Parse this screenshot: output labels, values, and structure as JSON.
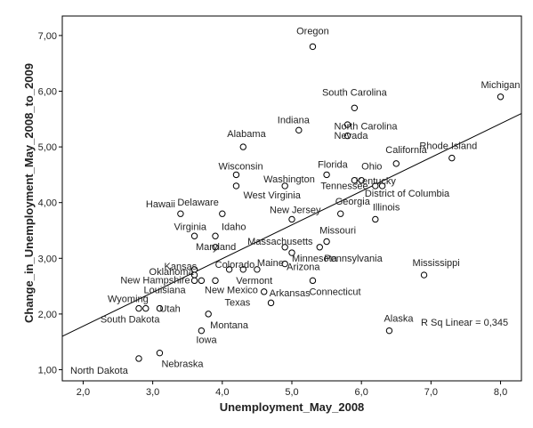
{
  "chart_data": {
    "type": "scatter",
    "xlabel": "Unemployment_May_2008",
    "ylabel": "Change_in_Unemployment_May_2008_to_2009",
    "xlim": [
      1.7,
      8.3
    ],
    "ylim": [
      0.8,
      7.35
    ],
    "x_ticks": [
      "2,0",
      "3,0",
      "4,0",
      "5,0",
      "6,0",
      "7,0",
      "8,0"
    ],
    "y_ticks": [
      "1,00",
      "2,00",
      "3,00",
      "4,00",
      "5,00",
      "6,00",
      "7,00"
    ],
    "grid": false,
    "fit_line": {
      "type": "linear",
      "x": [
        1.7,
        8.3
      ],
      "y": [
        1.6,
        5.6
      ]
    },
    "annotation": "R Sq Linear = 0,345",
    "points": [
      {
        "label": "Oregon",
        "x": 5.3,
        "y": 6.8
      },
      {
        "label": "Michigan",
        "x": 8.0,
        "y": 5.9
      },
      {
        "label": "South Carolina",
        "x": 5.9,
        "y": 5.7
      },
      {
        "label": "Indiana",
        "x": 5.1,
        "y": 5.3
      },
      {
        "label": "North Carolina",
        "x": 5.8,
        "y": 5.2
      },
      {
        "label": "Alabama",
        "x": 4.3,
        "y": 5.0
      },
      {
        "label": "Nevada",
        "x": 5.8,
        "y": 5.4
      },
      {
        "label": "California",
        "x": 6.5,
        "y": 4.7
      },
      {
        "label": "Rhode Island",
        "x": 7.3,
        "y": 4.8
      },
      {
        "label": "Wisconsin",
        "x": 4.2,
        "y": 4.5
      },
      {
        "label": "Florida",
        "x": 5.5,
        "y": 4.5
      },
      {
        "label": "Ohio",
        "x": 6.0,
        "y": 4.4
      },
      {
        "label": "Washington",
        "x": 4.9,
        "y": 4.3
      },
      {
        "label": "Kentucky",
        "x": 6.3,
        "y": 4.3
      },
      {
        "label": "Tennessee",
        "x": 5.9,
        "y": 4.4
      },
      {
        "label": "West Virginia",
        "x": 4.2,
        "y": 4.3
      },
      {
        "label": "District of Columbia",
        "x": 6.2,
        "y": 4.3
      },
      {
        "label": "Hawaii",
        "x": 3.4,
        "y": 3.8
      },
      {
        "label": "Delaware",
        "x": 4.0,
        "y": 3.8
      },
      {
        "label": "Georgia",
        "x": 5.7,
        "y": 3.8
      },
      {
        "label": "New Jersey",
        "x": 5.0,
        "y": 3.7
      },
      {
        "label": "Illinois",
        "x": 6.2,
        "y": 3.7
      },
      {
        "label": "Virginia",
        "x": 3.6,
        "y": 3.4
      },
      {
        "label": "Idaho",
        "x": 3.9,
        "y": 3.4
      },
      {
        "label": "Missouri",
        "x": 5.5,
        "y": 3.3
      },
      {
        "label": "Maryland",
        "x": 3.9,
        "y": 3.2
      },
      {
        "label": "Massachusetts",
        "x": 4.9,
        "y": 3.2
      },
      {
        "label": "Pennsylvania",
        "x": 5.4,
        "y": 3.2
      },
      {
        "label": "Kansas",
        "x": 3.6,
        "y": 2.8
      },
      {
        "label": "Colorado",
        "x": 4.1,
        "y": 2.8
      },
      {
        "label": "Maine",
        "x": 4.5,
        "y": 2.8
      },
      {
        "label": "Arizona",
        "x": 4.9,
        "y": 2.9
      },
      {
        "label": "Oklahoma",
        "x": 3.6,
        "y": 2.7
      },
      {
        "label": "Vermont",
        "x": 4.3,
        "y": 2.8
      },
      {
        "label": "Mississippi",
        "x": 6.9,
        "y": 2.7
      },
      {
        "label": "New Hampshire",
        "x": 3.7,
        "y": 2.6
      },
      {
        "label": "Minnesota",
        "x": 5.0,
        "y": 3.1
      },
      {
        "label": "New Mexico",
        "x": 3.9,
        "y": 2.6
      },
      {
        "label": "Connecticut",
        "x": 5.3,
        "y": 2.6
      },
      {
        "label": "Louisiana",
        "x": 3.6,
        "y": 2.6
      },
      {
        "label": "Arkansas",
        "x": 4.6,
        "y": 2.4
      },
      {
        "label": "Texas",
        "x": 4.7,
        "y": 2.2
      },
      {
        "label": "Wyoming",
        "x": 2.8,
        "y": 2.1
      },
      {
        "label": "Utah",
        "x": 3.1,
        "y": 2.1
      },
      {
        "label": "South Dakota",
        "x": 2.9,
        "y": 2.1
      },
      {
        "label": "Montana",
        "x": 3.8,
        "y": 2.0
      },
      {
        "label": "Alaska",
        "x": 6.4,
        "y": 1.7
      },
      {
        "label": "Iowa",
        "x": 3.7,
        "y": 1.7
      },
      {
        "label": "North Dakota",
        "x": 2.8,
        "y": 1.2
      },
      {
        "label": "Nebraska",
        "x": 3.1,
        "y": 1.3
      }
    ]
  }
}
